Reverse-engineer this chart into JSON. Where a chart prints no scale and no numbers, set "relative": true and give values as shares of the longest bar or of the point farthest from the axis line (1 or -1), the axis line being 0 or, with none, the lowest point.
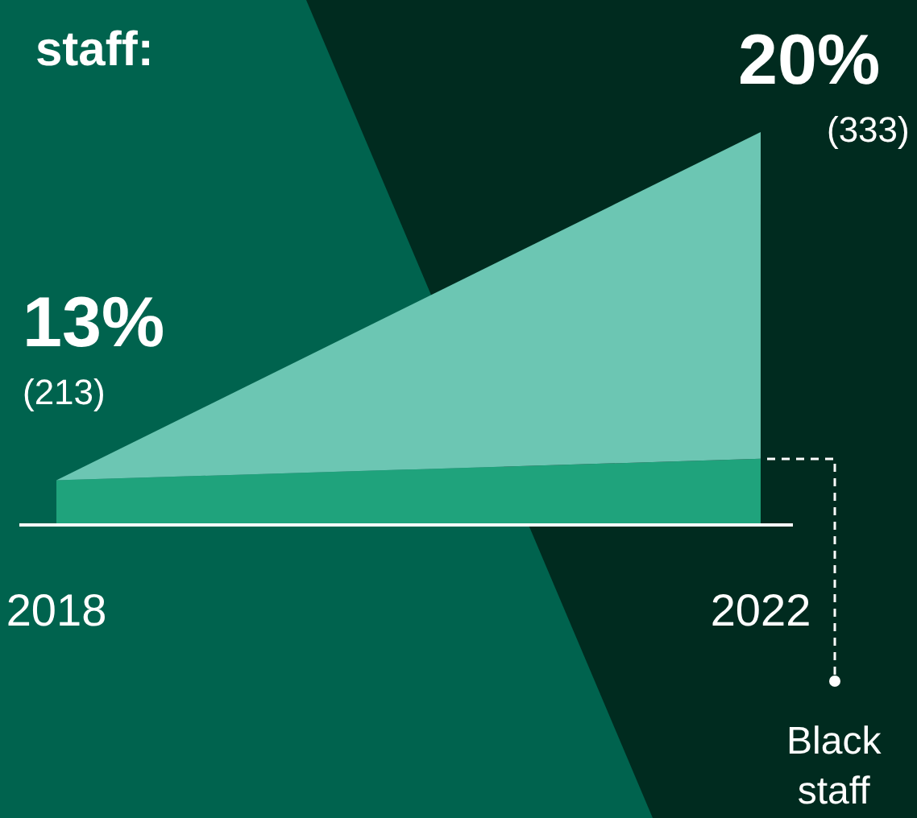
{
  "chart_data": {
    "type": "area",
    "title": "staff:",
    "relative": true,
    "stacked": true,
    "categories": [
      "2018",
      "2022"
    ],
    "series": [
      {
        "name": "Black staff",
        "color": "#1fa37c",
        "values": [
          0.11,
          0.165
        ]
      },
      {
        "color": "#6cc6b3",
        "values": [
          0,
          0.835
        ]
      }
    ],
    "annotations": [
      "13%",
      "(213)",
      "20%",
      "(333)"
    ],
    "grid": false,
    "legend": false
  }
}
